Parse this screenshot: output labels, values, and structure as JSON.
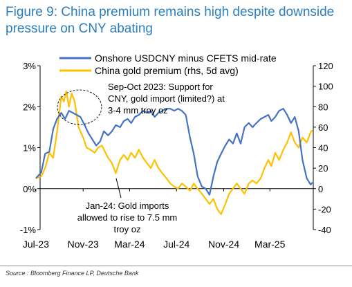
{
  "title": "Figure 9: China premium remains high despite downside pressure on CNY abating",
  "source": "Source : Bloomberg Finance LP, Deutsche Bank",
  "colors": {
    "title": "#2a7fc0",
    "onshore": "#4472c4",
    "gold": "#ffc000",
    "text": "#000000"
  },
  "chart_data": {
    "type": "line",
    "title": "",
    "xlabel": "",
    "ylabel": "",
    "x_ticks": [
      "Jul-23",
      "Nov-23",
      "Mar-24",
      "Jul-24",
      "Nov-24",
      "Mar-25"
    ],
    "x_range": [
      "2023-07-01",
      "2025-06-30"
    ],
    "y_left": {
      "range": [
        -1,
        3
      ],
      "ticks": [
        "-1%",
        "0%",
        "1%",
        "2%",
        "3%"
      ],
      "values": [
        -1,
        0,
        1,
        2,
        3
      ]
    },
    "y_right": {
      "range": [
        -40,
        120
      ],
      "ticks": [
        "-40",
        "-20",
        "0",
        "20",
        "40",
        "60",
        "80",
        "100",
        "120"
      ],
      "values": [
        -40,
        -20,
        0,
        20,
        40,
        60,
        80,
        100,
        120
      ]
    },
    "legend": {
      "placement": "top"
    },
    "series": [
      {
        "name": "Onshore USDCNY minus CFETS mid-rate",
        "axis": "left",
        "points": [
          [
            "2023-07-01",
            0.25
          ],
          [
            "2023-07-15",
            0.4
          ],
          [
            "2023-07-25",
            0.85
          ],
          [
            "2023-08-05",
            0.9
          ],
          [
            "2023-08-15",
            1.45
          ],
          [
            "2023-08-25",
            1.7
          ],
          [
            "2023-09-05",
            1.85
          ],
          [
            "2023-09-15",
            1.7
          ],
          [
            "2023-09-25",
            1.9
          ],
          [
            "2023-10-05",
            1.85
          ],
          [
            "2023-10-15",
            1.8
          ],
          [
            "2023-10-25",
            1.75
          ],
          [
            "2023-11-05",
            1.55
          ],
          [
            "2023-11-15",
            1.35
          ],
          [
            "2023-11-25",
            1.2
          ],
          [
            "2023-12-05",
            1.05
          ],
          [
            "2023-12-15",
            1.15
          ],
          [
            "2023-12-25",
            1.4
          ],
          [
            "2024-01-05",
            1.3
          ],
          [
            "2024-01-15",
            1.4
          ],
          [
            "2024-01-25",
            1.55
          ],
          [
            "2024-02-05",
            1.5
          ],
          [
            "2024-02-15",
            1.65
          ],
          [
            "2024-02-25",
            1.7
          ],
          [
            "2024-03-05",
            1.6
          ],
          [
            "2024-03-15",
            1.75
          ],
          [
            "2024-03-25",
            1.8
          ],
          [
            "2024-04-05",
            1.9
          ],
          [
            "2024-04-15",
            1.85
          ],
          [
            "2024-04-25",
            1.9
          ],
          [
            "2024-05-05",
            1.75
          ],
          [
            "2024-05-15",
            1.85
          ],
          [
            "2024-05-25",
            1.9
          ],
          [
            "2024-06-05",
            1.95
          ],
          [
            "2024-06-15",
            1.95
          ],
          [
            "2024-06-25",
            1.9
          ],
          [
            "2024-07-05",
            1.95
          ],
          [
            "2024-07-15",
            1.9
          ],
          [
            "2024-07-25",
            1.8
          ],
          [
            "2024-08-05",
            1.25
          ],
          [
            "2024-08-15",
            0.85
          ],
          [
            "2024-08-25",
            0.3
          ],
          [
            "2024-09-05",
            0.05
          ],
          [
            "2024-09-15",
            0.0
          ],
          [
            "2024-09-25",
            -0.15
          ],
          [
            "2024-10-05",
            0.3
          ],
          [
            "2024-10-15",
            0.65
          ],
          [
            "2024-10-25",
            0.85
          ],
          [
            "2024-11-05",
            1.05
          ],
          [
            "2024-11-15",
            1.2
          ],
          [
            "2024-11-25",
            1.1
          ],
          [
            "2024-12-05",
            1.35
          ],
          [
            "2024-12-15",
            1.1
          ],
          [
            "2024-12-25",
            1.5
          ],
          [
            "2025-01-05",
            1.6
          ],
          [
            "2025-01-15",
            1.5
          ],
          [
            "2025-01-25",
            1.6
          ],
          [
            "2025-02-05",
            1.7
          ],
          [
            "2025-02-15",
            1.75
          ],
          [
            "2025-02-25",
            1.8
          ],
          [
            "2025-03-05",
            1.65
          ],
          [
            "2025-03-15",
            1.75
          ],
          [
            "2025-03-25",
            1.9
          ],
          [
            "2025-04-05",
            1.95
          ],
          [
            "2025-04-15",
            1.8
          ],
          [
            "2025-04-25",
            1.6
          ],
          [
            "2025-05-05",
            1.75
          ],
          [
            "2025-05-15",
            1.4
          ],
          [
            "2025-05-25",
            0.7
          ],
          [
            "2025-06-05",
            0.25
          ],
          [
            "2025-06-15",
            0.1
          ],
          [
            "2025-06-20",
            0.15
          ]
        ]
      },
      {
        "name": "China gold premium (rhs, 5d avg)",
        "axis": "right",
        "points": [
          [
            "2023-07-01",
            10
          ],
          [
            "2023-07-15",
            12
          ],
          [
            "2023-07-25",
            20
          ],
          [
            "2023-08-05",
            35
          ],
          [
            "2023-08-15",
            30
          ],
          [
            "2023-08-25",
            55
          ],
          [
            "2023-09-05",
            90
          ],
          [
            "2023-09-12",
            85
          ],
          [
            "2023-09-18",
            95
          ],
          [
            "2023-09-25",
            80
          ],
          [
            "2023-10-02",
            93
          ],
          [
            "2023-10-10",
            85
          ],
          [
            "2023-10-20",
            60
          ],
          [
            "2023-11-01",
            50
          ],
          [
            "2023-11-10",
            40
          ],
          [
            "2023-11-20",
            38
          ],
          [
            "2023-12-01",
            35
          ],
          [
            "2023-12-10",
            40
          ],
          [
            "2023-12-20",
            42
          ],
          [
            "2024-01-05",
            30
          ],
          [
            "2024-01-15",
            25
          ],
          [
            "2024-01-25",
            15
          ],
          [
            "2024-02-05",
            28
          ],
          [
            "2024-02-15",
            33
          ],
          [
            "2024-02-25",
            28
          ],
          [
            "2024-03-05",
            35
          ],
          [
            "2024-03-15",
            30
          ],
          [
            "2024-03-25",
            38
          ],
          [
            "2024-04-05",
            30
          ],
          [
            "2024-04-15",
            25
          ],
          [
            "2024-04-25",
            20
          ],
          [
            "2024-05-05",
            28
          ],
          [
            "2024-05-15",
            20
          ],
          [
            "2024-05-25",
            15
          ],
          [
            "2024-06-05",
            10
          ],
          [
            "2024-06-15",
            5
          ],
          [
            "2024-06-25",
            2
          ],
          [
            "2024-07-05",
            0
          ],
          [
            "2024-07-15",
            5
          ],
          [
            "2024-07-25",
            2
          ],
          [
            "2024-08-05",
            -2
          ],
          [
            "2024-08-15",
            5
          ],
          [
            "2024-08-25",
            0
          ],
          [
            "2024-09-05",
            -5
          ],
          [
            "2024-09-15",
            -10
          ],
          [
            "2024-09-25",
            -15
          ],
          [
            "2024-10-05",
            -10
          ],
          [
            "2024-10-15",
            -20
          ],
          [
            "2024-10-25",
            -25
          ],
          [
            "2024-11-05",
            -15
          ],
          [
            "2024-11-15",
            -5
          ],
          [
            "2024-11-25",
            0
          ],
          [
            "2024-12-05",
            5
          ],
          [
            "2024-12-15",
            0
          ],
          [
            "2024-12-25",
            -5
          ],
          [
            "2025-01-05",
            5
          ],
          [
            "2025-01-15",
            8
          ],
          [
            "2025-01-25",
            5
          ],
          [
            "2025-02-05",
            10
          ],
          [
            "2025-02-15",
            20
          ],
          [
            "2025-02-25",
            28
          ],
          [
            "2025-03-05",
            22
          ],
          [
            "2025-03-15",
            35
          ],
          [
            "2025-03-25",
            28
          ],
          [
            "2025-04-05",
            38
          ],
          [
            "2025-04-15",
            45
          ],
          [
            "2025-04-25",
            55
          ],
          [
            "2025-05-05",
            45
          ],
          [
            "2025-05-15",
            40
          ],
          [
            "2025-05-25",
            50
          ],
          [
            "2025-06-05",
            45
          ],
          [
            "2025-06-15",
            55
          ],
          [
            "2025-06-20",
            57
          ]
        ]
      }
    ],
    "annotations": [
      "Sep-Oct 2023: Support for CNY, gold import (limited?) at 3-4 mm troy oz",
      "Jan-24: Gold imports allowed to rise to 7.5 mm troy oz"
    ]
  }
}
